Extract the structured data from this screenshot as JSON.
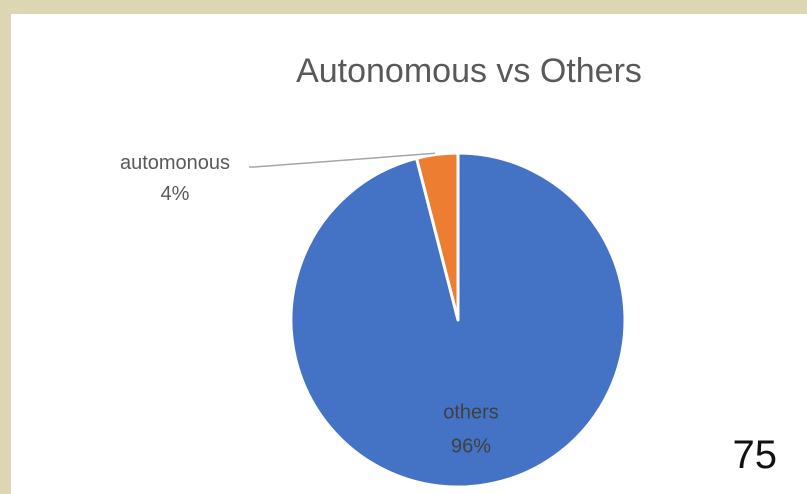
{
  "chart_data": {
    "type": "pie",
    "title": "Autonomous vs Others",
    "slices": [
      {
        "label": "automonous",
        "percent_label": "4%",
        "value": 4,
        "color": "#ed7d31"
      },
      {
        "label": "others",
        "percent_label": "96%",
        "value": 96,
        "color": "#4472c4"
      }
    ],
    "legend": "none",
    "start_angle_deg": 0,
    "direction": "counterclockwise"
  },
  "page_number": "75"
}
